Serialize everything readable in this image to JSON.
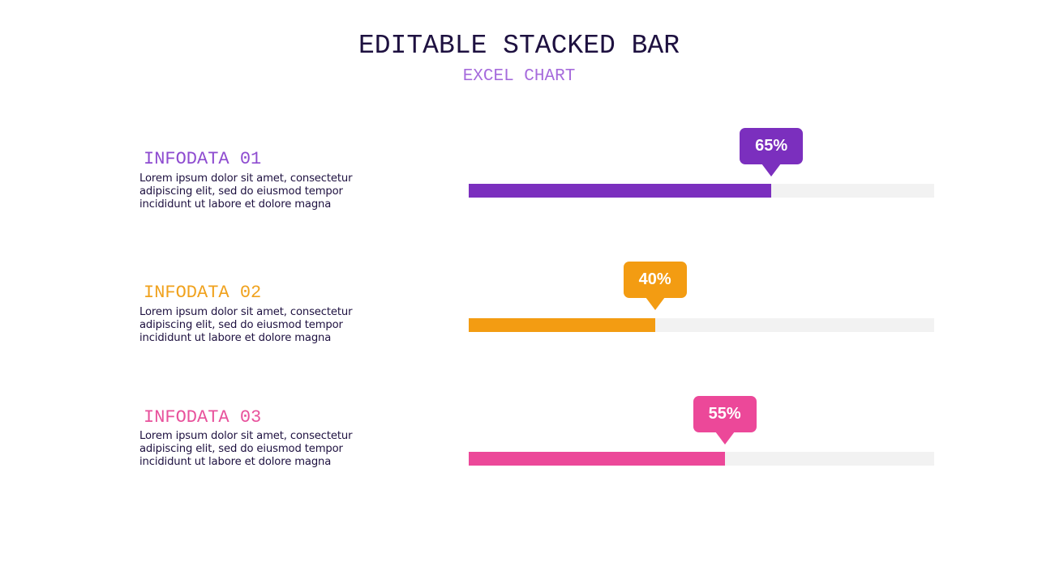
{
  "title": "EDITABLE STACKED BAR",
  "subtitle": "EXCEL CHART",
  "chart_data": {
    "type": "bar",
    "orientation": "horizontal",
    "categories": [
      "INFODATA 01",
      "INFODATA 02",
      "INFODATA 03"
    ],
    "values": [
      65,
      40,
      55
    ],
    "value_labels": [
      "65%",
      "40%",
      "55%"
    ],
    "max": 100,
    "colors": [
      "#7b2fbe",
      "#f39c12",
      "#ec4899"
    ],
    "track_color": "#f2f2f2"
  },
  "rows": [
    {
      "heading": "INFODATA 01",
      "description": "Lorem ipsum dolor sit amet, consectetur adipiscing elit, sed do eiusmod tempor incididunt ut labore et dolore magna",
      "value_label": "65%",
      "value": 65,
      "color": "#7b2fbe",
      "heading_color": "#8e4cd0"
    },
    {
      "heading": "INFODATA 02",
      "description": "Lorem ipsum dolor sit amet, consectetur adipiscing elit, sed do eiusmod tempor incididunt ut labore et dolore magna",
      "value_label": "40%",
      "value": 40,
      "color": "#f39c12",
      "heading_color": "#f0a21e"
    },
    {
      "heading": "INFODATA 03",
      "description": "Lorem ipsum dolor sit amet, consectetur adipiscing elit, sed do eiusmod tempor incididunt ut labore et dolore magna",
      "value_label": "55%",
      "value": 55,
      "color": "#ec4899",
      "heading_color": "#e8529c"
    }
  ]
}
